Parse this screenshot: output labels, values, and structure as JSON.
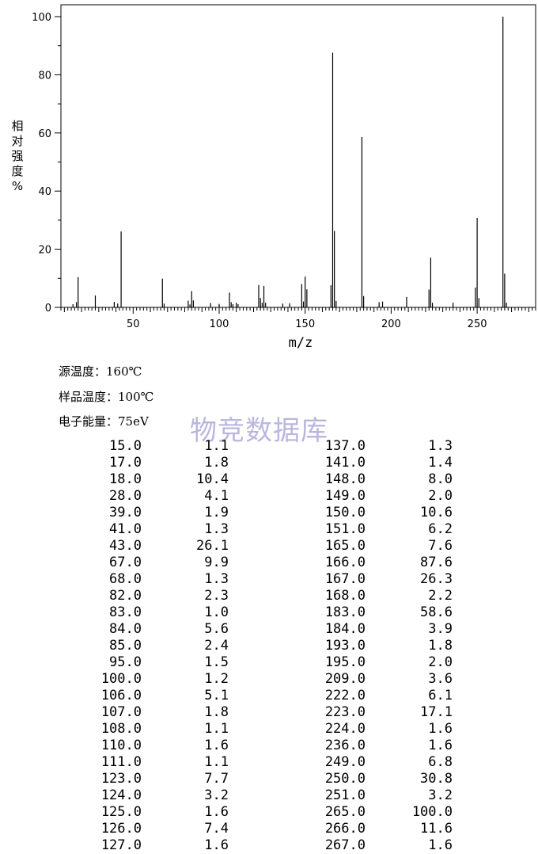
{
  "chart_data": {
    "type": "bar",
    "xlabel": "m/z",
    "ylabel": "相对强度/%",
    "xlim": [
      8,
      284
    ],
    "ylim": [
      0,
      100
    ],
    "xticks": [
      "50",
      "100",
      "150",
      "200",
      "250"
    ],
    "yticks": [
      "0",
      "20",
      "40",
      "60",
      "80",
      "100"
    ],
    "peaks": [
      [
        15.0,
        1.1
      ],
      [
        17.0,
        1.8
      ],
      [
        18.0,
        10.4
      ],
      [
        28.0,
        4.1
      ],
      [
        39.0,
        1.9
      ],
      [
        41.0,
        1.3
      ],
      [
        43.0,
        26.1
      ],
      [
        67.0,
        9.9
      ],
      [
        68.0,
        1.3
      ],
      [
        82.0,
        2.3
      ],
      [
        83.0,
        1.0
      ],
      [
        84.0,
        5.6
      ],
      [
        85.0,
        2.4
      ],
      [
        95.0,
        1.5
      ],
      [
        100.0,
        1.2
      ],
      [
        106.0,
        5.1
      ],
      [
        107.0,
        1.8
      ],
      [
        108.0,
        1.1
      ],
      [
        110.0,
        1.6
      ],
      [
        111.0,
        1.1
      ],
      [
        123.0,
        7.7
      ],
      [
        124.0,
        3.2
      ],
      [
        125.0,
        1.6
      ],
      [
        126.0,
        7.4
      ],
      [
        127.0,
        1.6
      ],
      [
        137.0,
        1.3
      ],
      [
        141.0,
        1.4
      ],
      [
        148.0,
        8.0
      ],
      [
        149.0,
        2.0
      ],
      [
        150.0,
        10.6
      ],
      [
        151.0,
        6.2
      ],
      [
        165.0,
        7.6
      ],
      [
        166.0,
        87.6
      ],
      [
        167.0,
        26.3
      ],
      [
        168.0,
        2.2
      ],
      [
        183.0,
        58.6
      ],
      [
        184.0,
        3.9
      ],
      [
        193.0,
        1.8
      ],
      [
        195.0,
        2.0
      ],
      [
        209.0,
        3.6
      ],
      [
        222.0,
        6.1
      ],
      [
        223.0,
        17.1
      ],
      [
        224.0,
        1.6
      ],
      [
        236.0,
        1.6
      ],
      [
        249.0,
        6.8
      ],
      [
        250.0,
        30.8
      ],
      [
        251.0,
        3.2
      ],
      [
        265.0,
        100.0
      ],
      [
        266.0,
        11.6
      ],
      [
        267.0,
        1.6
      ]
    ]
  },
  "ylabel_chars": [
    "相",
    "对",
    "强",
    "度",
    "%"
  ],
  "conditions": {
    "source_temp": "源温度：160℃",
    "sample_temp": "样品温度：100℃",
    "electron_energy": "电子能量：75eV"
  },
  "watermark": "物竞数据库",
  "table_left": [
    [
      "15.0",
      "1.1"
    ],
    [
      "17.0",
      "1.8"
    ],
    [
      "18.0",
      "10.4"
    ],
    [
      "28.0",
      "4.1"
    ],
    [
      "39.0",
      "1.9"
    ],
    [
      "41.0",
      "1.3"
    ],
    [
      "43.0",
      "26.1"
    ],
    [
      "67.0",
      "9.9"
    ],
    [
      "68.0",
      "1.3"
    ],
    [
      "82.0",
      "2.3"
    ],
    [
      "83.0",
      "1.0"
    ],
    [
      "84.0",
      "5.6"
    ],
    [
      "85.0",
      "2.4"
    ],
    [
      "95.0",
      "1.5"
    ],
    [
      "100.0",
      "1.2"
    ],
    [
      "106.0",
      "5.1"
    ],
    [
      "107.0",
      "1.8"
    ],
    [
      "108.0",
      "1.1"
    ],
    [
      "110.0",
      "1.6"
    ],
    [
      "111.0",
      "1.1"
    ],
    [
      "123.0",
      "7.7"
    ],
    [
      "124.0",
      "3.2"
    ],
    [
      "125.0",
      "1.6"
    ],
    [
      "126.0",
      "7.4"
    ],
    [
      "127.0",
      "1.6"
    ]
  ],
  "table_right": [
    [
      "137.0",
      "1.3"
    ],
    [
      "141.0",
      "1.4"
    ],
    [
      "148.0",
      "8.0"
    ],
    [
      "149.0",
      "2.0"
    ],
    [
      "150.0",
      "10.6"
    ],
    [
      "151.0",
      "6.2"
    ],
    [
      "165.0",
      "7.6"
    ],
    [
      "166.0",
      "87.6"
    ],
    [
      "167.0",
      "26.3"
    ],
    [
      "168.0",
      "2.2"
    ],
    [
      "183.0",
      "58.6"
    ],
    [
      "184.0",
      "3.9"
    ],
    [
      "193.0",
      "1.8"
    ],
    [
      "195.0",
      "2.0"
    ],
    [
      "209.0",
      "3.6"
    ],
    [
      "222.0",
      "6.1"
    ],
    [
      "223.0",
      "17.1"
    ],
    [
      "224.0",
      "1.6"
    ],
    [
      "236.0",
      "1.6"
    ],
    [
      "249.0",
      "6.8"
    ],
    [
      "250.0",
      "30.8"
    ],
    [
      "251.0",
      "3.2"
    ],
    [
      "265.0",
      "100.0"
    ],
    [
      "266.0",
      "11.6"
    ],
    [
      "267.0",
      "1.6"
    ]
  ]
}
